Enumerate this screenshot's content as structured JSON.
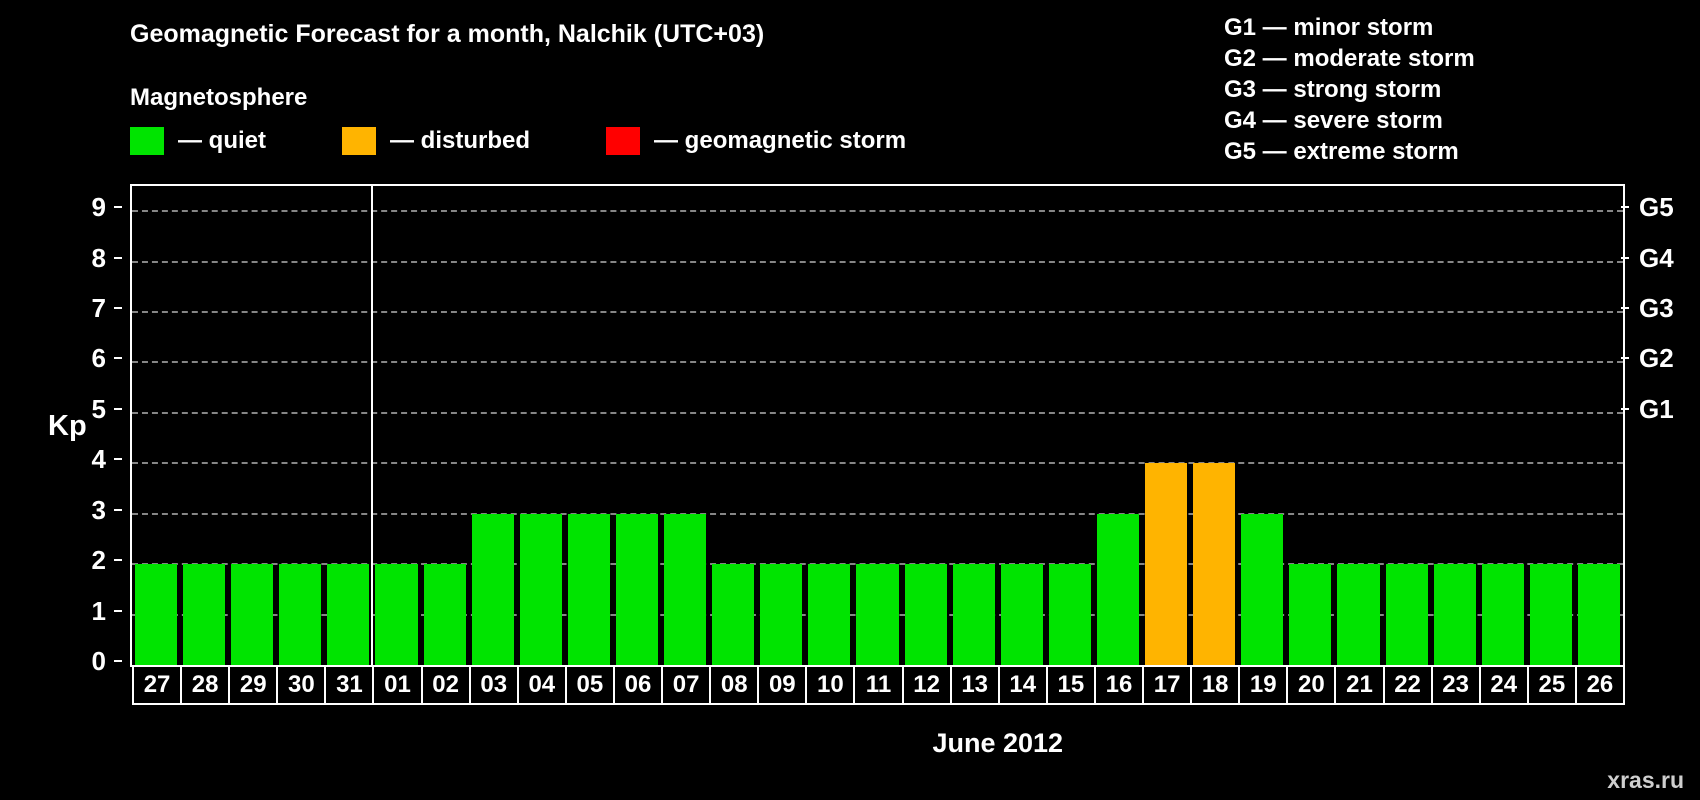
{
  "title": "Geomagnetic Forecast for a month, Nalchik (UTC+03)",
  "magnetosphere_label": "Magnetosphere",
  "legend": [
    {
      "key": "quiet",
      "label": "— quiet"
    },
    {
      "key": "disturbed",
      "label": "— disturbed"
    },
    {
      "key": "storm",
      "label": "— geomagnetic storm"
    }
  ],
  "g_scale_legend": [
    "G1 — minor storm",
    "G2 — moderate storm",
    "G3 — strong storm",
    "G4 — severe storm",
    "G5 — extreme storm"
  ],
  "colors": {
    "quiet": "#00e400",
    "disturbed": "#ffb400",
    "storm": "#ff0000",
    "background": "#000000",
    "axis": "#ffffff",
    "grid": "#868686"
  },
  "watermark": "xras.ru",
  "chart_data": {
    "type": "bar",
    "title": "Geomagnetic Forecast for a month, Nalchik (UTC+03)",
    "xlabel": "June 2012",
    "ylabel": "Kp",
    "ylim": [
      0,
      9
    ],
    "grid": true,
    "legend_position": "top",
    "categories": [
      "27",
      "28",
      "29",
      "30",
      "31",
      "01",
      "02",
      "03",
      "04",
      "05",
      "06",
      "07",
      "08",
      "09",
      "10",
      "11",
      "12",
      "13",
      "14",
      "15",
      "16",
      "17",
      "18",
      "19",
      "20",
      "21",
      "22",
      "23",
      "24",
      "25",
      "26"
    ],
    "values": [
      2,
      2,
      2,
      2,
      2,
      2,
      2,
      3,
      3,
      3,
      3,
      3,
      2,
      2,
      2,
      2,
      2,
      2,
      2,
      2,
      3,
      4,
      4,
      3,
      2,
      2,
      2,
      2,
      2,
      2,
      2
    ],
    "statuses": [
      "quiet",
      "quiet",
      "quiet",
      "quiet",
      "quiet",
      "quiet",
      "quiet",
      "quiet",
      "quiet",
      "quiet",
      "quiet",
      "quiet",
      "quiet",
      "quiet",
      "quiet",
      "quiet",
      "quiet",
      "quiet",
      "quiet",
      "quiet",
      "quiet",
      "disturbed",
      "disturbed",
      "quiet",
      "quiet",
      "quiet",
      "quiet",
      "quiet",
      "quiet",
      "quiet",
      "quiet"
    ],
    "y_ticks": [
      0,
      1,
      2,
      3,
      4,
      5,
      6,
      7,
      8,
      9
    ],
    "right_axis_labels": [
      {
        "label": "G1",
        "kp": 5
      },
      {
        "label": "G2",
        "kp": 6
      },
      {
        "label": "G3",
        "kp": 7
      },
      {
        "label": "G4",
        "kp": 8
      },
      {
        "label": "G5",
        "kp": 9
      }
    ],
    "month_separator_after": "31",
    "month_label": "June 2012"
  }
}
